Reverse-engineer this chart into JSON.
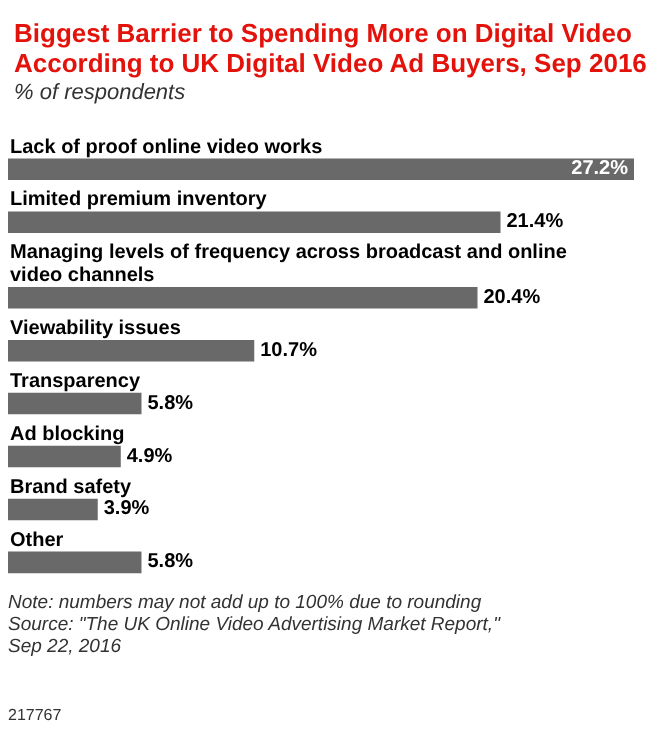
{
  "chart_data": {
    "type": "bar",
    "orientation": "horizontal",
    "title": "Biggest Barrier to Spending More on Digital Video According to UK Digital Video Ad Buyers, Sep 2016",
    "subtitle": "% of respondents",
    "categories": [
      "Lack of proof online video works",
      "Limited premium inventory",
      "Managing levels of frequency across broadcast and online video channels",
      "Viewability issues",
      "Transparency",
      "Ad blocking",
      "Brand safety",
      "Other"
    ],
    "values": [
      27.2,
      21.4,
      20.4,
      10.7,
      5.8,
      4.9,
      3.9,
      5.8
    ],
    "value_labels": [
      "27.2%",
      "21.4%",
      "20.4%",
      "10.7%",
      "5.8%",
      "4.9%",
      "3.9%",
      "5.8%"
    ],
    "color": "#696969",
    "annotations": [
      "Note: numbers may not add up to 100% due to rounding",
      "Source: \"The UK Online Video Advertising Market Report,\" Sep 22, 2016",
      "217767"
    ]
  }
}
